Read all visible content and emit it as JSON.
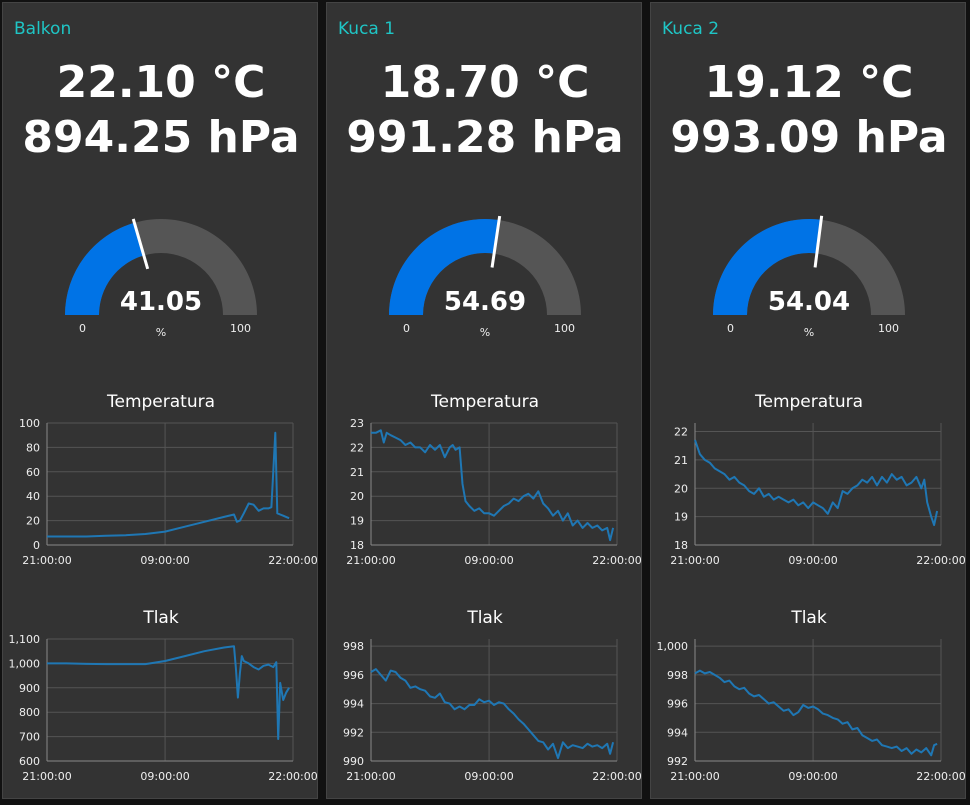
{
  "panels": [
    {
      "title": "Balkon",
      "temperature_text": "22.10 °C",
      "pressure_text": "894.25 hPa",
      "gauge": {
        "value": 41.05,
        "value_text": "41.05",
        "unit": "%",
        "min": 0,
        "max": 100,
        "min_text": "0",
        "max_text": "100"
      },
      "temp_chart_title": "Temperatura",
      "pressure_chart_title": "Tlak"
    },
    {
      "title": "Kuca 1",
      "temperature_text": "18.70 °C",
      "pressure_text": "991.28 hPa",
      "gauge": {
        "value": 54.69,
        "value_text": "54.69",
        "unit": "%",
        "min": 0,
        "max": 100,
        "min_text": "0",
        "max_text": "100"
      },
      "temp_chart_title": "Temperatura",
      "pressure_chart_title": "Tlak"
    },
    {
      "title": "Kuca 2",
      "temperature_text": "19.12 °C",
      "pressure_text": "993.09 hPa",
      "gauge": {
        "value": 54.04,
        "value_text": "54.04",
        "unit": "%",
        "min": 0,
        "max": 100,
        "min_text": "0",
        "max_text": "100"
      },
      "temp_chart_title": "Temperatura",
      "pressure_chart_title": "Tlak"
    }
  ],
  "colors": {
    "panel_bg": "#333333",
    "title": "#1fc5c5",
    "gauge_fill": "#0073e6",
    "gauge_track": "#555555",
    "series_line": "#1f77b4",
    "grid": "#555555"
  },
  "chart_data": [
    {
      "type": "line",
      "title": "Temperatura",
      "x_ticks": [
        "21:00:00",
        "09:00:00",
        "22:00:00"
      ],
      "x_range_hours": [
        0,
        25
      ],
      "y_ticks": [
        "0",
        "20",
        "40",
        "60",
        "80",
        "100"
      ],
      "ylim": [
        0,
        100
      ],
      "series": [
        {
          "x": [
            0,
            2,
            4,
            6,
            8,
            10,
            12,
            14,
            16,
            18,
            19,
            19.3,
            19.6,
            20,
            20.5,
            21,
            21.5,
            22,
            22.5,
            22.8,
            23.2,
            23.4,
            23.7,
            24,
            24.3,
            24.6
          ],
          "y": [
            7,
            7,
            7,
            7.5,
            8,
            9,
            11,
            15,
            19,
            23,
            25,
            19,
            20,
            26,
            34,
            33,
            28,
            30,
            30,
            31,
            92,
            26,
            25,
            24,
            23,
            22
          ]
        }
      ]
    },
    {
      "type": "line",
      "title": "Tlak",
      "x_ticks": [
        "21:00:00",
        "09:00:00",
        "22:00:00"
      ],
      "x_range_hours": [
        0,
        25
      ],
      "y_ticks": [
        "600",
        "700",
        "800",
        "900",
        "1,000",
        "1,100"
      ],
      "ylim": [
        600,
        1100
      ],
      "series": [
        {
          "x": [
            0,
            2,
            4,
            6,
            8,
            10,
            12,
            14,
            16,
            18,
            19,
            19.2,
            19.4,
            19.6,
            19.8,
            20,
            20.5,
            21,
            21.5,
            22,
            22.5,
            23,
            23.3,
            23.5,
            23.7,
            24,
            24.3,
            24.6
          ],
          "y": [
            1000,
            1000,
            998,
            997,
            997,
            997,
            1010,
            1030,
            1050,
            1065,
            1070,
            980,
            860,
            960,
            1030,
            1010,
            1000,
            985,
            975,
            990,
            995,
            985,
            1005,
            690,
            920,
            850,
            880,
            900
          ]
        }
      ]
    },
    {
      "type": "line",
      "title": "Temperatura",
      "x_ticks": [
        "21:00:00",
        "09:00:00",
        "22:00:00"
      ],
      "x_range_hours": [
        0,
        25
      ],
      "y_ticks": [
        "18",
        "19",
        "20",
        "21",
        "22",
        "23"
      ],
      "ylim": [
        18,
        23
      ],
      "series": [
        {
          "x": [
            0,
            0.5,
            1,
            1.3,
            1.6,
            2,
            2.5,
            3,
            3.5,
            4,
            4.5,
            5,
            5.5,
            6,
            6.5,
            7,
            7.5,
            8,
            8.3,
            8.6,
            9,
            9.3,
            9.6,
            10,
            10.5,
            11,
            11.5,
            12,
            12.5,
            13,
            13.5,
            14,
            14.5,
            15,
            15.5,
            16,
            16.5,
            17,
            17.5,
            18,
            18.5,
            19,
            19.5,
            20,
            20.5,
            21,
            21.5,
            22,
            22.5,
            23,
            23.5,
            24,
            24.3,
            24.6
          ],
          "y": [
            22.6,
            22.6,
            22.7,
            22.2,
            22.6,
            22.5,
            22.4,
            22.3,
            22.1,
            22.2,
            22.0,
            22.0,
            21.8,
            22.1,
            21.9,
            22.1,
            21.6,
            22.0,
            22.1,
            21.9,
            22.0,
            20.5,
            19.8,
            19.6,
            19.4,
            19.5,
            19.3,
            19.3,
            19.2,
            19.4,
            19.6,
            19.7,
            19.9,
            19.8,
            20.0,
            20.1,
            19.9,
            20.2,
            19.7,
            19.5,
            19.2,
            19.4,
            19.0,
            19.3,
            18.8,
            19.0,
            18.7,
            18.9,
            18.7,
            18.8,
            18.6,
            18.7,
            18.2,
            18.7
          ]
        }
      ]
    },
    {
      "type": "line",
      "title": "Tlak",
      "x_ticks": [
        "21:00:00",
        "09:00:00",
        "22:00:00"
      ],
      "x_range_hours": [
        0,
        25
      ],
      "y_ticks": [
        "990",
        "992",
        "994",
        "996",
        "998"
      ],
      "ylim": [
        990,
        998.5
      ],
      "series": [
        {
          "x": [
            0,
            0.5,
            1,
            1.5,
            2,
            2.5,
            3,
            3.5,
            4,
            4.5,
            5,
            5.5,
            6,
            6.5,
            7,
            7.5,
            8,
            8.5,
            9,
            9.5,
            10,
            10.5,
            11,
            11.5,
            12,
            12.5,
            13,
            13.5,
            14,
            14.5,
            15,
            15.5,
            16,
            16.5,
            17,
            17.5,
            18,
            18.5,
            19,
            19.5,
            20,
            20.5,
            21,
            21.5,
            22,
            22.5,
            23,
            23.5,
            24,
            24.3,
            24.6
          ],
          "y": [
            996.2,
            996.4,
            996.0,
            995.6,
            996.3,
            996.2,
            995.8,
            995.6,
            995.1,
            995.2,
            995.0,
            994.9,
            994.5,
            994.4,
            994.7,
            994.1,
            994.0,
            993.6,
            993.8,
            993.6,
            993.9,
            993.9,
            994.3,
            994.1,
            994.2,
            993.9,
            994.1,
            994.0,
            993.6,
            993.3,
            992.9,
            992.6,
            992.2,
            991.8,
            991.4,
            991.3,
            990.8,
            991.2,
            990.2,
            991.3,
            990.9,
            991.1,
            991.0,
            990.9,
            991.2,
            991.0,
            991.1,
            990.9,
            991.2,
            990.5,
            991.3
          ]
        }
      ]
    },
    {
      "type": "line",
      "title": "Temperatura",
      "x_ticks": [
        "21:00:00",
        "09:00:00",
        "22:00:00"
      ],
      "x_range_hours": [
        0,
        25
      ],
      "y_ticks": [
        "18",
        "19",
        "20",
        "21",
        "22"
      ],
      "ylim": [
        18,
        22.3
      ],
      "series": [
        {
          "x": [
            0,
            0.5,
            1,
            1.5,
            2,
            2.5,
            3,
            3.5,
            4,
            4.5,
            5,
            5.5,
            6,
            6.5,
            7,
            7.5,
            8,
            8.5,
            9,
            9.5,
            10,
            10.5,
            11,
            11.5,
            12,
            12.5,
            13,
            13.5,
            14,
            14.5,
            15,
            15.5,
            16,
            16.5,
            17,
            17.5,
            18,
            18.5,
            19,
            19.5,
            20,
            20.5,
            21,
            21.5,
            22,
            22.5,
            23,
            23.3,
            23.6,
            24,
            24.3,
            24.6
          ],
          "y": [
            21.7,
            21.2,
            21.0,
            20.9,
            20.7,
            20.6,
            20.5,
            20.3,
            20.4,
            20.2,
            20.1,
            19.9,
            19.8,
            20.0,
            19.7,
            19.8,
            19.6,
            19.7,
            19.6,
            19.5,
            19.6,
            19.4,
            19.5,
            19.3,
            19.5,
            19.4,
            19.3,
            19.1,
            19.5,
            19.3,
            19.9,
            19.8,
            20.0,
            20.1,
            20.3,
            20.2,
            20.4,
            20.1,
            20.4,
            20.2,
            20.5,
            20.3,
            20.4,
            20.1,
            20.2,
            20.4,
            20.0,
            20.3,
            19.5,
            19.0,
            18.7,
            19.2
          ]
        }
      ]
    },
    {
      "type": "line",
      "title": "Tlak",
      "x_ticks": [
        "21:00:00",
        "09:00:00",
        "22:00:00"
      ],
      "x_range_hours": [
        0,
        25
      ],
      "y_ticks": [
        "992",
        "994",
        "996",
        "998",
        "1,000"
      ],
      "ylim": [
        992,
        1000.5
      ],
      "series": [
        {
          "x": [
            0,
            0.5,
            1,
            1.5,
            2,
            2.5,
            3,
            3.5,
            4,
            4.5,
            5,
            5.5,
            6,
            6.5,
            7,
            7.5,
            8,
            8.5,
            9,
            9.5,
            10,
            10.5,
            11,
            11.5,
            12,
            12.5,
            13,
            13.5,
            14,
            14.5,
            15,
            15.5,
            16,
            16.5,
            17,
            17.5,
            18,
            18.5,
            19,
            19.5,
            20,
            20.5,
            21,
            21.5,
            22,
            22.5,
            23,
            23.5,
            24,
            24.3,
            24.6
          ],
          "y": [
            998.1,
            998.3,
            998.1,
            998.2,
            998.0,
            997.8,
            997.5,
            997.6,
            997.2,
            997.0,
            997.1,
            996.7,
            996.5,
            996.6,
            996.3,
            996.0,
            996.1,
            995.8,
            995.5,
            995.6,
            995.2,
            995.4,
            995.9,
            995.7,
            995.8,
            995.6,
            995.3,
            995.2,
            995.0,
            994.9,
            994.6,
            994.7,
            994.2,
            994.3,
            993.8,
            993.6,
            993.4,
            993.5,
            993.1,
            993.0,
            992.9,
            993.0,
            992.7,
            992.9,
            992.5,
            992.8,
            992.6,
            992.9,
            992.4,
            993.1,
            993.2
          ]
        }
      ]
    }
  ]
}
